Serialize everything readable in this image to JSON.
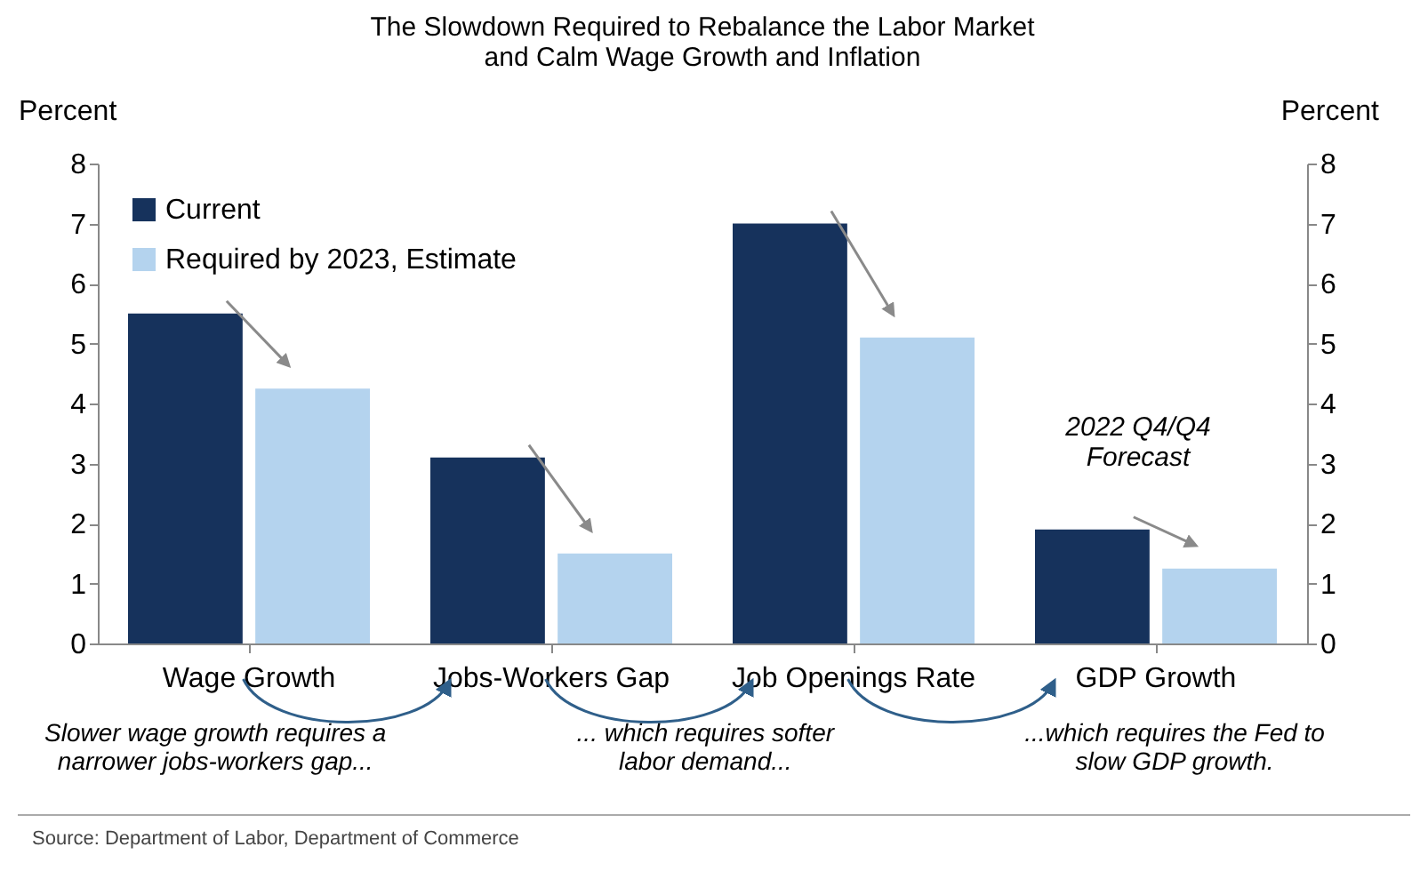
{
  "chart_data": {
    "type": "bar",
    "title": [
      "The Slowdown Required to Rebalance the Labor Market",
      "and Calm Wage Growth and Inflation"
    ],
    "categories": [
      "Wage Growth",
      "Jobs-Workers Gap",
      "Job Openings Rate",
      "GDP Growth"
    ],
    "series": [
      {
        "name": "Current",
        "color": "#16325c",
        "values": [
          5.5,
          3.1,
          7.0,
          1.9
        ]
      },
      {
        "name": "Required by 2023, Estimate",
        "color": "#b4d3ee",
        "values": [
          4.25,
          1.5,
          5.1,
          1.25
        ]
      }
    ],
    "ylabel": "Percent",
    "y2label": "Percent",
    "ylim": [
      0,
      8
    ],
    "yticks": [
      0,
      1,
      2,
      3,
      4,
      5,
      6,
      7,
      8
    ],
    "y2lim": [
      0,
      8
    ],
    "y2ticks": [
      0,
      1,
      2,
      3,
      4,
      5,
      6,
      7,
      8
    ],
    "grid": false,
    "legend": "top left",
    "annotations": [
      "2022 Q4/Q4\nForecast",
      "Slower wage growth requires a\nnarrower jobs-workers gap...",
      "... which requires softer\nlabor demand...",
      "...which requires the Fed to\nslow GDP growth.",
      "Source: Department of Labor, Department of Commerce"
    ]
  }
}
